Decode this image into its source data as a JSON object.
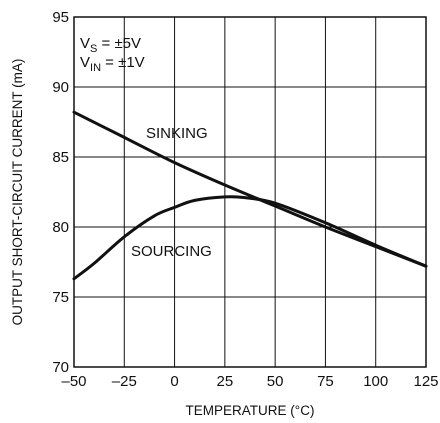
{
  "chart_data": {
    "type": "line",
    "xlabel": "TEMPERATURE (°C)",
    "ylabel": "OUTPUT SHORT-CIRCUIT CURRENT (mA)",
    "xlim": [
      -50,
      125
    ],
    "ylim": [
      70,
      95
    ],
    "xticks": [
      -50,
      -25,
      0,
      25,
      50,
      75,
      100,
      125
    ],
    "yticks": [
      70,
      75,
      80,
      85,
      90,
      95
    ],
    "xtick_labels": [
      "–50",
      "–25",
      "0",
      "25",
      "50",
      "75",
      "100",
      "125"
    ],
    "ytick_labels": [
      "70",
      "75",
      "80",
      "85",
      "90",
      "95"
    ],
    "grid": true,
    "annotations": {
      "vs": {
        "main": "V",
        "sub": "S",
        "rest": " = ±5V"
      },
      "vin": {
        "main": "V",
        "sub": "IN",
        "rest": " = ±1V"
      }
    },
    "series": [
      {
        "name": "SINKING",
        "x": [
          -50,
          -25,
          0,
          25,
          50,
          75,
          100,
          125
        ],
        "y": [
          88.2,
          86.4,
          84.6,
          83.0,
          81.5,
          80.0,
          78.6,
          77.2
        ]
      },
      {
        "name": "SOURCING",
        "x": [
          -50,
          -40,
          -25,
          -10,
          0,
          10,
          25,
          35,
          50,
          75,
          100,
          125
        ],
        "y": [
          76.3,
          77.4,
          79.3,
          80.8,
          81.4,
          81.9,
          82.15,
          82.1,
          81.7,
          80.3,
          78.7,
          77.2
        ]
      }
    ]
  }
}
